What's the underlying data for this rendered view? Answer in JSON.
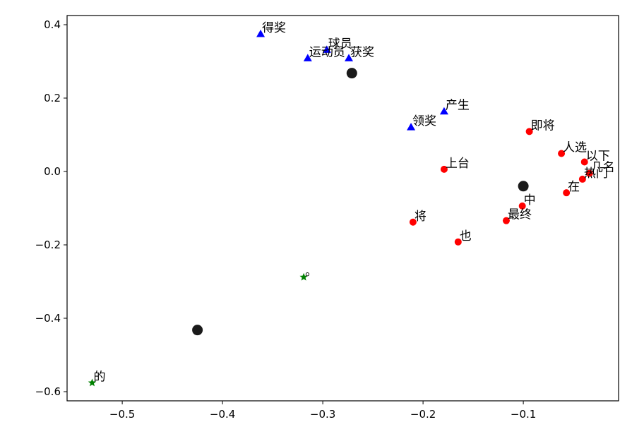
{
  "chart_data": {
    "type": "scatter",
    "title": "",
    "xlabel": "",
    "ylabel": "",
    "xlim": [
      -0.555,
      -0.005
    ],
    "ylim": [
      -0.625,
      0.425
    ],
    "x_ticks": [
      -0.5,
      -0.4,
      -0.3,
      -0.2,
      -0.1
    ],
    "x_tick_labels": [
      "−0.5",
      "−0.4",
      "−0.3",
      "−0.2",
      "−0.1"
    ],
    "y_ticks": [
      0.4,
      0.2,
      0.0,
      -0.2,
      -0.4,
      -0.6
    ],
    "y_tick_labels": [
      "0.4",
      "0.2",
      "0.0",
      "−0.2",
      "−0.4",
      "−0.6"
    ],
    "grid": false,
    "series": [
      {
        "marker": "triangle",
        "color": "#0000ff",
        "points": [
          {
            "x": -0.362,
            "y": 0.375,
            "label": "得奖"
          },
          {
            "x": -0.296,
            "y": 0.332,
            "label": "球员"
          },
          {
            "x": -0.315,
            "y": 0.309,
            "label": "运动员"
          },
          {
            "x": -0.274,
            "y": 0.309,
            "label": "获奖"
          },
          {
            "x": -0.179,
            "y": 0.164,
            "label": "产生"
          },
          {
            "x": -0.212,
            "y": 0.121,
            "label": "领奖"
          }
        ]
      },
      {
        "marker": "circle",
        "color": "#ff0000",
        "points": [
          {
            "x": -0.094,
            "y": 0.109,
            "label": "即将"
          },
          {
            "x": -0.062,
            "y": 0.049,
            "label": "人选"
          },
          {
            "x": -0.039,
            "y": 0.026,
            "label": "以下"
          },
          {
            "x": -0.034,
            "y": -0.005,
            "label": "几名"
          },
          {
            "x": -0.041,
            "y": -0.021,
            "label": "热门"
          },
          {
            "x": -0.179,
            "y": 0.006,
            "label": "上台"
          },
          {
            "x": -0.057,
            "y": -0.058,
            "label": "在"
          },
          {
            "x": -0.101,
            "y": -0.094,
            "label": "中"
          },
          {
            "x": -0.117,
            "y": -0.134,
            "label": "最终"
          },
          {
            "x": -0.21,
            "y": -0.138,
            "label": "将"
          },
          {
            "x": -0.165,
            "y": -0.192,
            "label": "也"
          }
        ]
      },
      {
        "marker": "star",
        "color": "#008000",
        "points": [
          {
            "x": -0.319,
            "y": -0.288,
            "label": "。"
          },
          {
            "x": -0.53,
            "y": -0.576,
            "label": "的"
          }
        ]
      },
      {
        "marker": "large-circle",
        "color": "#1a1a1a",
        "points": [
          {
            "x": -0.271,
            "y": 0.268,
            "label": ""
          },
          {
            "x": -0.1,
            "y": -0.04,
            "label": ""
          },
          {
            "x": -0.425,
            "y": -0.432,
            "label": ""
          }
        ]
      }
    ]
  }
}
